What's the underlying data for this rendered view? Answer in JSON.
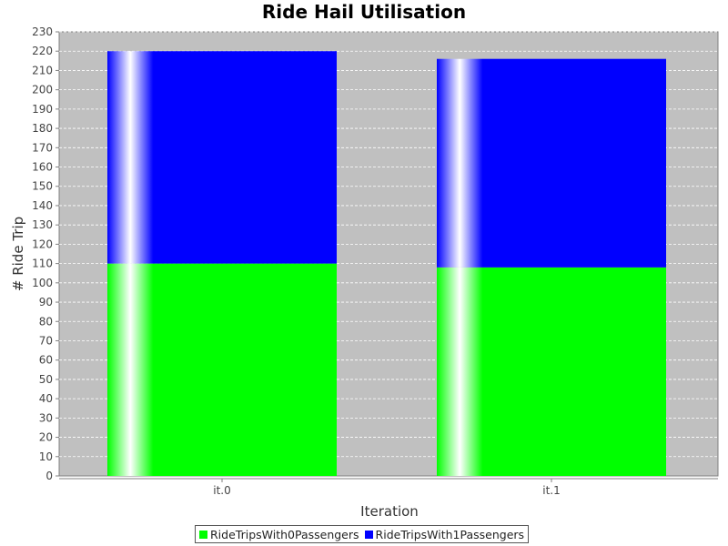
{
  "colors": {
    "plot_bg": "#c0c0c0",
    "grid": "#ffffff",
    "axis": "#808080"
  },
  "chart_data": {
    "type": "bar",
    "stacked": true,
    "title": "Ride Hail Utilisation",
    "xlabel": "Iteration",
    "ylabel": "# Ride Trip",
    "categories": [
      "it.0",
      "it.1"
    ],
    "series": [
      {
        "name": "RideTripsWith0Passengers",
        "color": "#00ff00",
        "values": [
          110,
          108
        ]
      },
      {
        "name": "RideTripsWith1Passengers",
        "color": "#0000ff",
        "values": [
          110,
          108
        ]
      }
    ],
    "ylim": [
      0,
      230
    ],
    "yticks": [
      0,
      10,
      20,
      30,
      40,
      50,
      60,
      70,
      80,
      90,
      100,
      110,
      120,
      130,
      140,
      150,
      160,
      170,
      180,
      190,
      200,
      210,
      220,
      230
    ],
    "grid": true,
    "legend_position": "bottom"
  }
}
